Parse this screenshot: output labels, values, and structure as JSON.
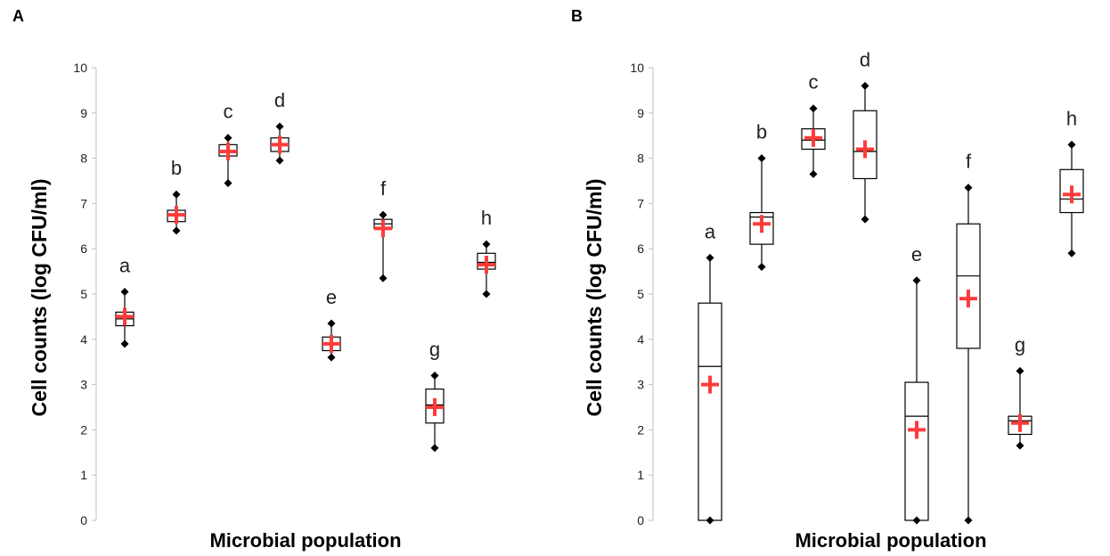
{
  "chart_data": [
    {
      "type": "box",
      "panel_label": "A",
      "xlabel": "Microbial population",
      "ylabel": "Cell counts  (log CFU/ml)",
      "ylim": [
        0,
        10
      ],
      "yticks": [
        "0",
        "1",
        "2",
        "3",
        "4",
        "5",
        "6",
        "7",
        "8",
        "9",
        "10"
      ],
      "grid": false,
      "mean_marker_color": "#ff3b3b",
      "groups": [
        {
          "label": "a",
          "min": 3.9,
          "q1": 4.3,
          "median": 4.45,
          "q3": 4.6,
          "max": 5.05,
          "mean": 4.5
        },
        {
          "label": "b",
          "min": 6.4,
          "q1": 6.6,
          "median": 6.75,
          "q3": 6.85,
          "max": 7.2,
          "mean": 6.75
        },
        {
          "label": "c",
          "min": 7.45,
          "q1": 8.05,
          "median": 8.15,
          "q3": 8.3,
          "max": 8.45,
          "mean": 8.15
        },
        {
          "label": "d",
          "min": 7.95,
          "q1": 8.15,
          "median": 8.3,
          "q3": 8.45,
          "max": 8.7,
          "mean": 8.3
        },
        {
          "label": "e",
          "min": 3.6,
          "q1": 3.75,
          "median": 3.9,
          "q3": 4.05,
          "max": 4.35,
          "mean": 3.9
        },
        {
          "label": "f",
          "min": 5.35,
          "q1": 6.45,
          "median": 6.55,
          "q3": 6.65,
          "max": 6.75,
          "mean": 6.45
        },
        {
          "label": "g",
          "min": 1.6,
          "q1": 2.15,
          "median": 2.55,
          "q3": 2.9,
          "max": 3.2,
          "mean": 2.5
        },
        {
          "label": "h",
          "min": 5.0,
          "q1": 5.55,
          "median": 5.7,
          "q3": 5.9,
          "max": 6.1,
          "mean": 5.65
        }
      ]
    },
    {
      "type": "box",
      "panel_label": "B",
      "xlabel": "Microbial population",
      "ylabel": "Cell counts  (log CFU/ml)",
      "ylim": [
        0,
        10
      ],
      "yticks": [
        "0",
        "1",
        "2",
        "3",
        "4",
        "5",
        "6",
        "7",
        "8",
        "9",
        "10"
      ],
      "grid": false,
      "mean_marker_color": "#ff3b3b",
      "groups": [
        {
          "label": "a",
          "min": 0.0,
          "q1": 0.0,
          "median": 3.4,
          "q3": 4.8,
          "max": 5.8,
          "mean": 3.0
        },
        {
          "label": "b",
          "min": 5.6,
          "q1": 6.1,
          "median": 6.7,
          "q3": 6.8,
          "max": 8.0,
          "mean": 6.55
        },
        {
          "label": "c",
          "min": 7.65,
          "q1": 8.2,
          "median": 8.4,
          "q3": 8.65,
          "max": 9.1,
          "mean": 8.45
        },
        {
          "label": "d",
          "min": 6.65,
          "q1": 7.55,
          "median": 8.15,
          "q3": 9.05,
          "max": 9.6,
          "mean": 8.2
        },
        {
          "label": "e",
          "min": 0.0,
          "q1": 0.0,
          "median": 2.3,
          "q3": 3.05,
          "max": 5.3,
          "mean": 2.0
        },
        {
          "label": "f",
          "min": 0.0,
          "q1": 3.8,
          "median": 5.4,
          "q3": 6.55,
          "max": 7.35,
          "mean": 4.9
        },
        {
          "label": "g",
          "min": 1.65,
          "q1": 1.9,
          "median": 2.2,
          "q3": 2.3,
          "max": 3.3,
          "mean": 2.15
        },
        {
          "label": "h",
          "min": 5.9,
          "q1": 6.8,
          "median": 7.1,
          "q3": 7.75,
          "max": 8.3,
          "mean": 7.2
        }
      ]
    }
  ]
}
